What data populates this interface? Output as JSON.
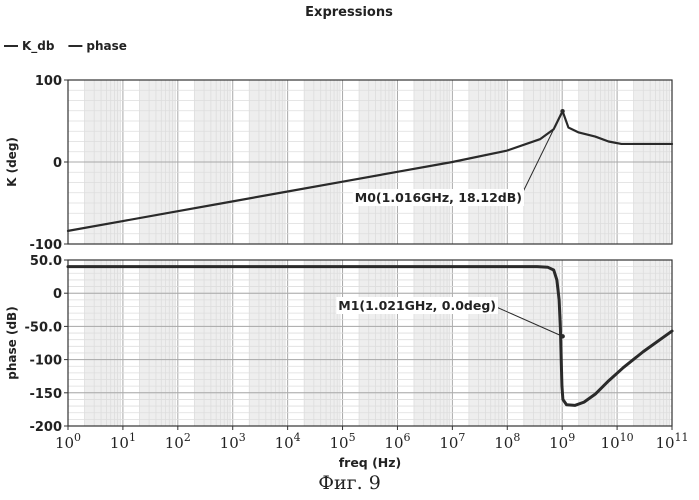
{
  "chart_data": {
    "type": "line",
    "title": "Expressions",
    "legend": {
      "placement": "top-left",
      "items": [
        "K_db",
        "phase"
      ]
    },
    "xlabel": "freq (Hz)",
    "xscale": "log",
    "xlim": [
      1,
      100000000000
    ],
    "xticks": [
      {
        "base": "10",
        "exp": "0"
      },
      {
        "base": "10",
        "exp": "1"
      },
      {
        "base": "10",
        "exp": "2"
      },
      {
        "base": "10",
        "exp": "3"
      },
      {
        "base": "10",
        "exp": "4"
      },
      {
        "base": "10",
        "exp": "5"
      },
      {
        "base": "10",
        "exp": "6"
      },
      {
        "base": "10",
        "exp": "7"
      },
      {
        "base": "10",
        "exp": "8"
      },
      {
        "base": "10",
        "exp": "9"
      },
      {
        "base": "10",
        "exp": "10"
      },
      {
        "base": "10",
        "exp": "11"
      }
    ],
    "grid": true,
    "panels": [
      {
        "ylabel": "K (deg)",
        "ylim": [
          -100,
          100
        ],
        "yticks": [
          "100",
          "0",
          "-100"
        ],
        "series": {
          "points": [
            [
              1,
              -84
            ],
            [
              10,
              -72
            ],
            [
              100,
              -60
            ],
            [
              1000,
              -48
            ],
            [
              10000,
              -36
            ],
            [
              100000,
              -24
            ],
            [
              1000000,
              -12
            ],
            [
              10000000,
              0
            ],
            [
              100000000,
              14
            ],
            [
              400000000,
              28
            ],
            [
              700000000,
              40
            ],
            [
              1016000000,
              62
            ],
            [
              1300000000,
              42
            ],
            [
              2000000000,
              36
            ],
            [
              4000000000,
              31
            ],
            [
              7000000000,
              25
            ],
            [
              12000000000,
              22
            ],
            [
              100000000000,
              22
            ]
          ]
        },
        "marker": {
          "label": "M0(1.016GHz, 18.12dB)",
          "x": 1016000000,
          "y": 62
        }
      },
      {
        "ylabel": "phase (dB)",
        "ylim": [
          -200,
          50
        ],
        "yticks": [
          "50.0",
          "0",
          "-50.0",
          "-100",
          "-150",
          "-200"
        ],
        "series": {
          "points": [
            [
              1,
              40
            ],
            [
              100000000,
              40
            ],
            [
              350000000,
              40
            ],
            [
              550000000,
              39
            ],
            [
              700000000,
              35
            ],
            [
              800000000,
              20
            ],
            [
              880000000,
              -10
            ],
            [
              930000000,
              -55
            ],
            [
              960000000,
              -100
            ],
            [
              990000000,
              -140
            ],
            [
              1030000000,
              -160
            ],
            [
              1200000000,
              -168
            ],
            [
              1700000000,
              -169
            ],
            [
              2500000000,
              -164
            ],
            [
              4000000000,
              -152
            ],
            [
              7000000000,
              -132
            ],
            [
              13000000000,
              -112
            ],
            [
              30000000000,
              -88
            ],
            [
              100000000000,
              -57
            ]
          ]
        },
        "marker": {
          "label": "M1(1.021GHz, 0.0deg)",
          "x": 1021000000,
          "y": -65
        }
      }
    ]
  },
  "caption": "Фиг. 9",
  "colors": {
    "trace": "#2a2a2a",
    "grid_major": "#a8a8a8",
    "grid_minor": "#dddddd",
    "band": "#eeeeee",
    "axis": "#333333"
  }
}
